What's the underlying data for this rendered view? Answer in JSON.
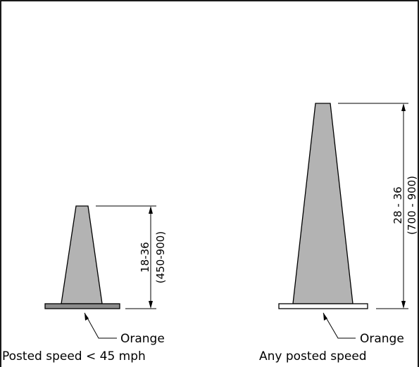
{
  "small_cone": {
    "dimension": "18-36",
    "dimension_metric": "(450-900)",
    "base_label": "Orange",
    "caption": "Posted speed < 45 mph",
    "cone_color": "#b3b3b3",
    "base_color": "#8c8c8c"
  },
  "large_cone": {
    "dimension": "28 - 36",
    "dimension_metric": "(700 - 900)",
    "base_label": "Orange",
    "caption": "Any posted speed",
    "cone_color": "#b3b3b3",
    "base_color": "#ffffff"
  }
}
